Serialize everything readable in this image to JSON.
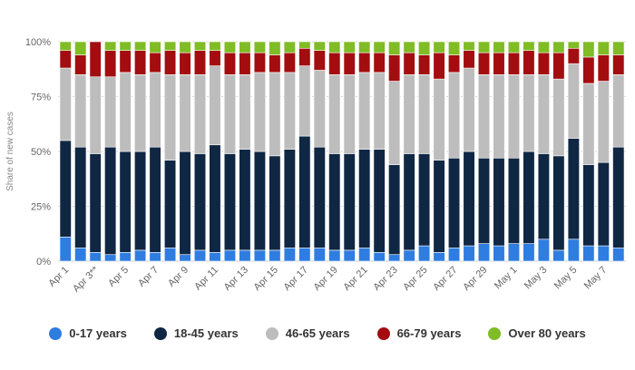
{
  "chart_data": {
    "type": "bar",
    "stacked": true,
    "ylabel": "Share of new cases",
    "ylim": [
      0,
      100
    ],
    "yticks": [
      "0%",
      "25%",
      "50%",
      "75%",
      "100%"
    ],
    "ytick_values": [
      0,
      25,
      50,
      75,
      100
    ],
    "xtick_labels": [
      "Apr 1",
      "Apr 3**",
      "Apr 5",
      "Apr 7",
      "Apr 9",
      "Apr 11",
      "Apr 13",
      "Apr 15",
      "Apr 17",
      "Apr 19",
      "Apr 21",
      "Apr 23",
      "Apr 25",
      "Apr 27",
      "Apr 29",
      "May 1",
      "May 3",
      "May 5",
      "May 7"
    ],
    "categories": [
      "Apr 1",
      "Apr 2",
      "Apr 3**",
      "Apr 4",
      "Apr 5",
      "Apr 6",
      "Apr 7",
      "Apr 8",
      "Apr 9",
      "Apr 10",
      "Apr 11",
      "Apr 12",
      "Apr 13",
      "Apr 14",
      "Apr 15",
      "Apr 16",
      "Apr 17",
      "Apr 18",
      "Apr 19",
      "Apr 20",
      "Apr 21",
      "Apr 22",
      "Apr 23",
      "Apr 24",
      "Apr 25",
      "Apr 26",
      "Apr 27",
      "Apr 28",
      "Apr 29",
      "Apr 30",
      "May 1",
      "May 2",
      "May 3",
      "May 4",
      "May 5",
      "May 6",
      "May 7",
      "May 8"
    ],
    "series": [
      {
        "name": "0-17 years",
        "color": "#2f7de1",
        "values": [
          11,
          6,
          4,
          3,
          4,
          5,
          4,
          6,
          3,
          5,
          4,
          5,
          5,
          5,
          5,
          6,
          6,
          6,
          5,
          5,
          6,
          4,
          3,
          5,
          7,
          4,
          6,
          7,
          8,
          7,
          8,
          8,
          10,
          5,
          10,
          7,
          7,
          6
        ]
      },
      {
        "name": "18-45 years",
        "color": "#0f2743",
        "values": [
          44,
          46,
          45,
          49,
          46,
          45,
          48,
          40,
          47,
          44,
          49,
          44,
          46,
          45,
          43,
          45,
          51,
          46,
          44,
          44,
          45,
          47,
          41,
          44,
          42,
          42,
          41,
          43,
          39,
          40,
          39,
          42,
          39,
          43,
          46,
          37,
          38,
          46
        ]
      },
      {
        "name": "46-65 years",
        "color": "#bdbdbd",
        "values": [
          33,
          33,
          35,
          32,
          36,
          35,
          34,
          39,
          35,
          36,
          36,
          36,
          34,
          36,
          38,
          35,
          32,
          35,
          36,
          36,
          35,
          35,
          38,
          36,
          36,
          37,
          39,
          38,
          38,
          38,
          38,
          35,
          36,
          35,
          34,
          37,
          37,
          33
        ]
      },
      {
        "name": "66-79 years",
        "color": "#a30d10",
        "values": [
          8,
          9,
          16,
          12,
          10,
          11,
          9,
          11,
          10,
          11,
          7,
          10,
          10,
          9,
          8,
          9,
          8,
          9,
          10,
          10,
          9,
          9,
          12,
          10,
          9,
          12,
          8,
          8,
          10,
          10,
          10,
          11,
          10,
          12,
          7,
          12,
          12,
          9
        ]
      },
      {
        "name": "Over 80 years",
        "color": "#7fbc25",
        "values": [
          4,
          6,
          0,
          4,
          4,
          4,
          5,
          4,
          5,
          4,
          4,
          5,
          5,
          5,
          6,
          5,
          3,
          4,
          5,
          5,
          5,
          5,
          6,
          5,
          6,
          5,
          6,
          4,
          5,
          5,
          5,
          4,
          5,
          5,
          3,
          7,
          6,
          6
        ]
      }
    ],
    "legend_position": "bottom-center"
  }
}
